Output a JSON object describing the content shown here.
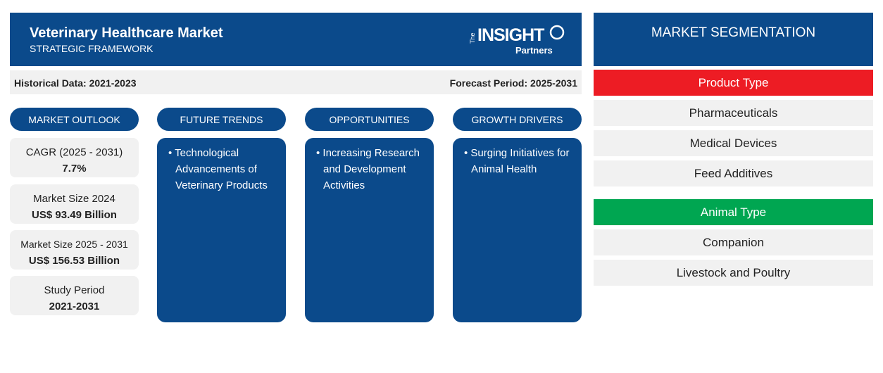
{
  "header": {
    "title": "Veterinary Healthcare Market",
    "subtitle": "STRATEGIC FRAMEWORK",
    "logo": {
      "prefix": "The",
      "name": "INSIGHT",
      "suffix": "Partners"
    }
  },
  "periods": {
    "historical": "Historical Data: 2021-2023",
    "forecast": "Forecast Period: 2025-2031"
  },
  "market_outlook": {
    "title": "MARKET OUTLOOK",
    "cards": [
      {
        "label": "CAGR (2025 - 2031)",
        "value": "7.7%"
      },
      {
        "label": "Market Size 2024",
        "value": "US$ 93.49 Billion"
      },
      {
        "label": "Market Size 2025 - 2031",
        "value": "US$ 156.53 Billion"
      },
      {
        "label": "Study Period",
        "value": "2021-2031"
      }
    ]
  },
  "columns": [
    {
      "title": "FUTURE TRENDS",
      "items": [
        "Technological Advancements of Veterinary Products"
      ]
    },
    {
      "title": "OPPORTUNITIES",
      "items": [
        "Increasing Research and Development Activities"
      ]
    },
    {
      "title": "GROWTH DRIVERS",
      "items": [
        "Surging Initiatives for Animal Health"
      ]
    }
  ],
  "segmentation": {
    "title": "MARKET SEGMENTATION",
    "groups": [
      {
        "name": "Product Type",
        "items": [
          "Pharmaceuticals",
          "Medical Devices",
          "Feed Additives"
        ]
      },
      {
        "name": "Animal Type",
        "items": [
          "Companion",
          "Livestock and Poultry"
        ]
      }
    ]
  }
}
